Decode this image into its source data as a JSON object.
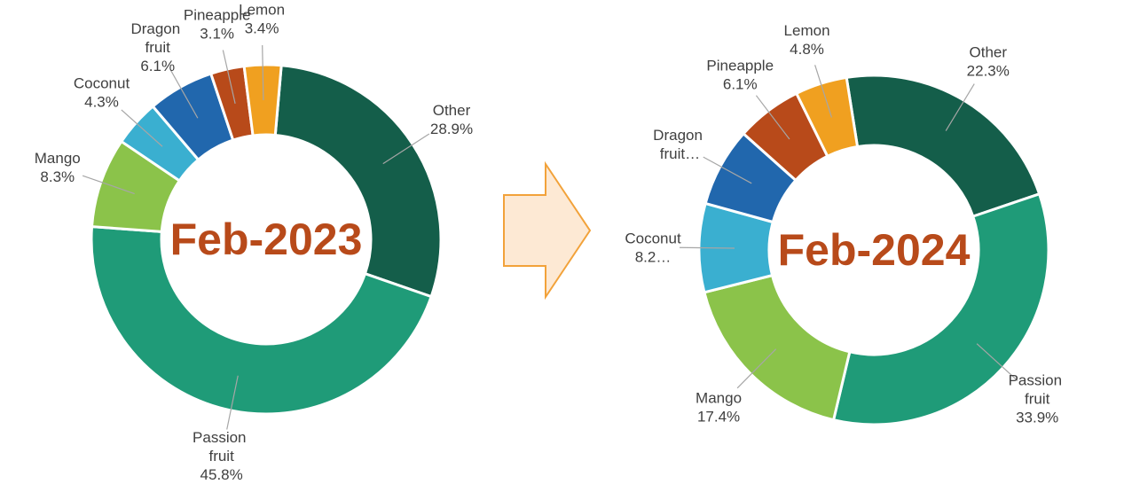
{
  "chart_data": [
    {
      "type": "donut",
      "title": "Feb-2023",
      "categories": [
        "Other",
        "Passion fruit",
        "Mango",
        "Coconut",
        "Dragon fruit",
        "Pineapple",
        "Lemon"
      ],
      "values": [
        28.9,
        45.8,
        8.3,
        4.3,
        6.1,
        3.1,
        3.4
      ],
      "value_labels": [
        "28.9%",
        "45.8%",
        "8.3%",
        "4.3%",
        "6.1%",
        "3.1%",
        "3.4%"
      ],
      "colors": [
        "#145e4a",
        "#1f9b78",
        "#8bc34a",
        "#3aafd0",
        "#2167ad",
        "#b84a1a",
        "#f0a020"
      ]
    },
    {
      "type": "donut",
      "title": "Feb-2024",
      "categories": [
        "Other",
        "Passion fruit",
        "Mango",
        "Coconut",
        "Dragon fruit…",
        "Pineapple",
        "Lemon"
      ],
      "values": [
        22.3,
        33.9,
        17.4,
        8.2,
        7.3,
        6.1,
        4.8
      ],
      "value_labels": [
        "22.3%",
        "33.9%",
        "17.4%",
        "8.2…",
        null,
        "6.1%",
        "4.8%"
      ],
      "colors": [
        "#145e4a",
        "#1f9b78",
        "#8bc34a",
        "#3aafd0",
        "#2167ad",
        "#b84a1a",
        "#f0a020"
      ]
    }
  ]
}
